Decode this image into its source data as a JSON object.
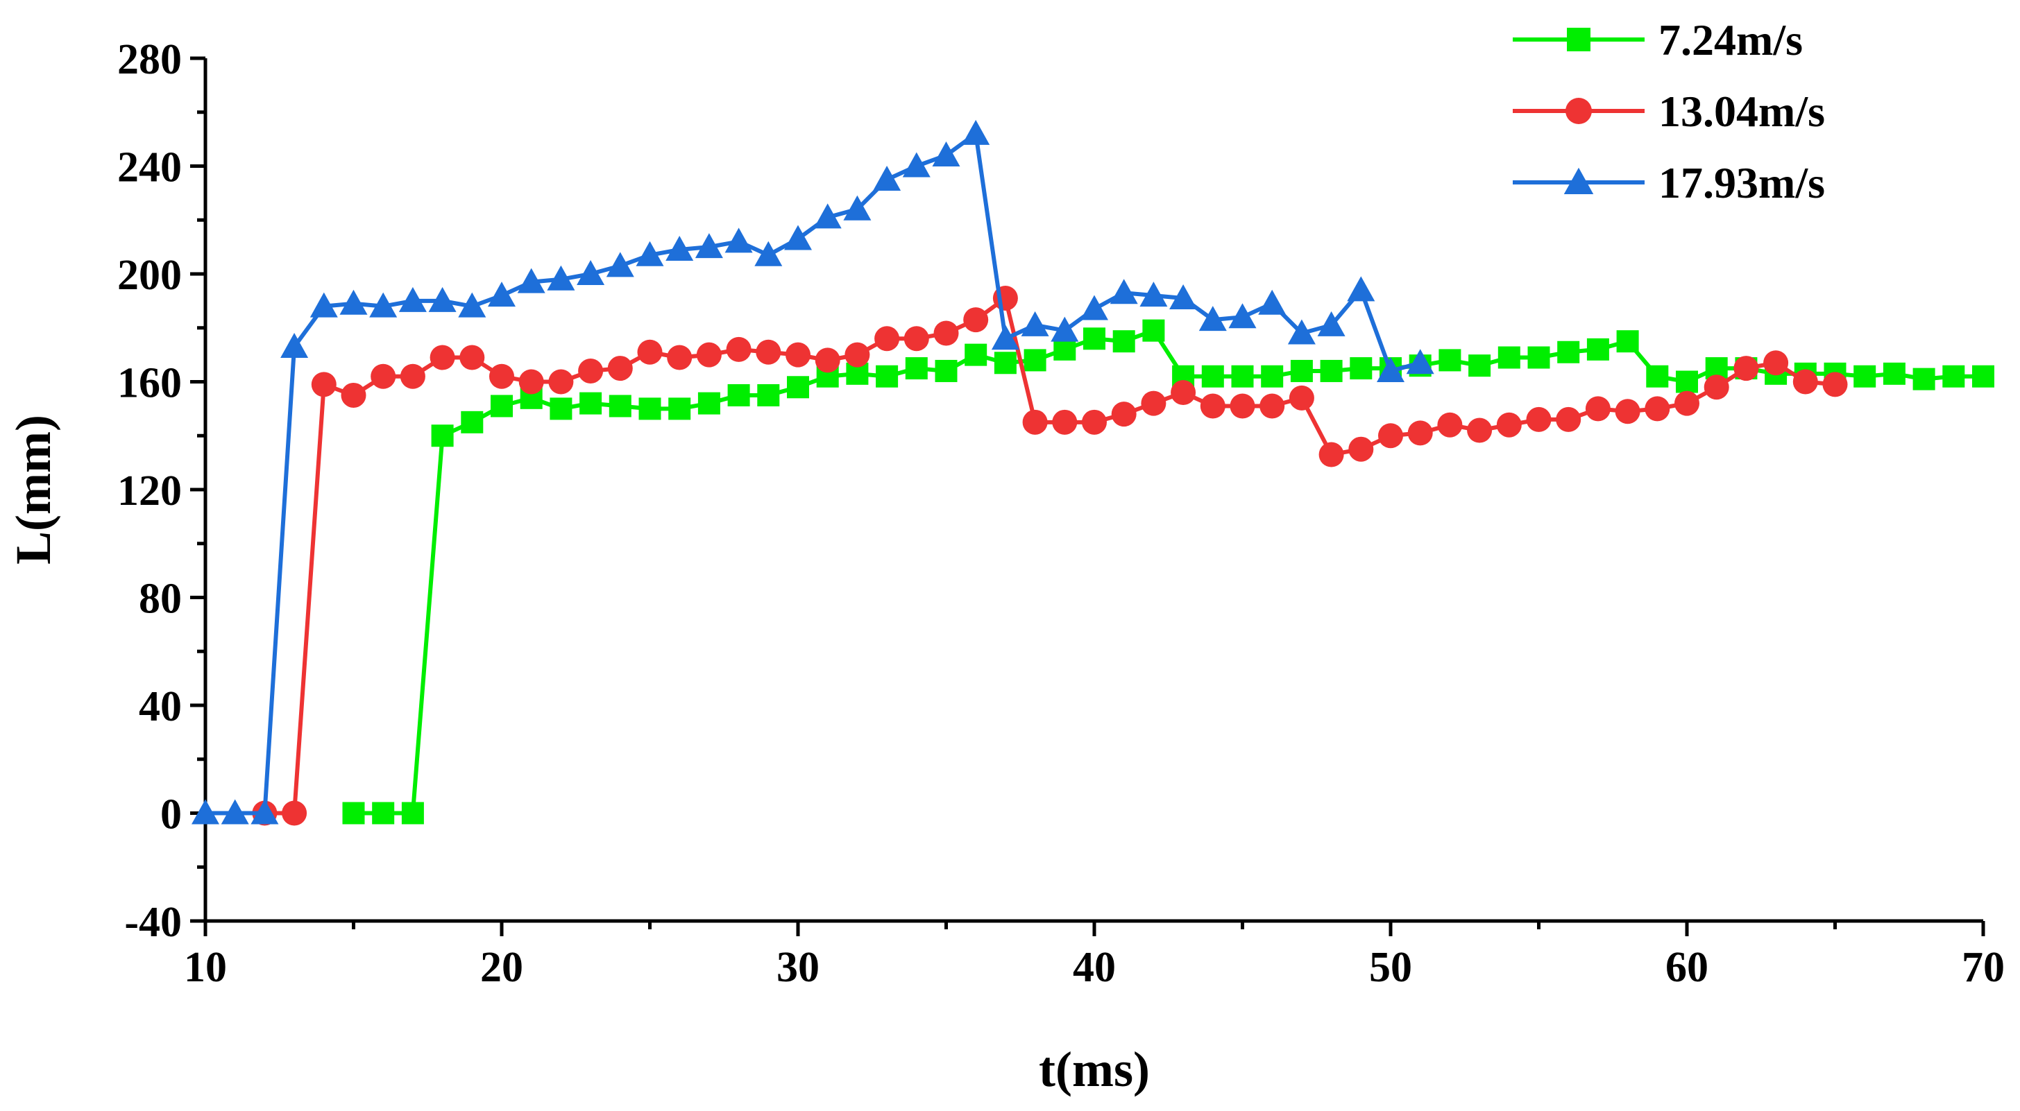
{
  "chart_data": {
    "type": "line",
    "xlabel": "t(ms)",
    "ylabel": "L(mm)",
    "xlim": [
      10,
      70
    ],
    "ylim": [
      -40,
      280
    ],
    "x_ticks": [
      10,
      20,
      30,
      40,
      50,
      60,
      70
    ],
    "y_ticks": [
      -40,
      0,
      40,
      80,
      120,
      160,
      200,
      240,
      280
    ],
    "x_tick_labels": [
      "10",
      "20",
      "30",
      "40",
      "50",
      "60",
      "70"
    ],
    "y_tick_labels": [
      "-40",
      "0",
      "40",
      "80",
      "120",
      "160",
      "200",
      "240",
      "280"
    ],
    "grid": false,
    "legend_position": "top-right",
    "series": [
      {
        "name": "7.24m/s",
        "color": "#00ee00",
        "marker": "square",
        "x": [
          15,
          16,
          17,
          18,
          19,
          20,
          21,
          22,
          23,
          24,
          25,
          26,
          27,
          28,
          29,
          30,
          31,
          32,
          33,
          34,
          35,
          36,
          37,
          38,
          39,
          40,
          41,
          42,
          43,
          44,
          45,
          46,
          47,
          48,
          49,
          50,
          51,
          52,
          53,
          54,
          55,
          56,
          57,
          58,
          59,
          60,
          61,
          62,
          63,
          64,
          65,
          66,
          67,
          68,
          69,
          70
        ],
        "y": [
          0,
          0,
          0,
          140,
          145,
          151,
          154,
          150,
          152,
          151,
          150,
          150,
          152,
          155,
          155,
          158,
          162,
          163,
          162,
          165,
          164,
          170,
          167,
          168,
          172,
          176,
          175,
          179,
          162,
          162,
          162,
          162,
          164,
          164,
          165,
          165,
          166,
          168,
          166,
          169,
          169,
          171,
          172,
          175,
          162,
          160,
          165,
          165,
          163,
          163,
          163,
          162,
          163,
          161,
          162,
          162
        ]
      },
      {
        "name": "13.04m/s",
        "color": "#ee3333",
        "marker": "circle",
        "x": [
          12,
          13,
          14,
          15,
          16,
          17,
          18,
          19,
          20,
          21,
          22,
          23,
          24,
          25,
          26,
          27,
          28,
          29,
          30,
          31,
          32,
          33,
          34,
          35,
          36,
          37,
          38,
          39,
          40,
          41,
          42,
          43,
          44,
          45,
          46,
          47,
          48,
          49,
          50,
          51,
          52,
          53,
          54,
          55,
          56,
          57,
          58,
          59,
          60,
          61,
          62,
          63,
          64,
          65
        ],
        "y": [
          0,
          0,
          159,
          155,
          162,
          162,
          169,
          169,
          162,
          160,
          160,
          164,
          165,
          171,
          169,
          170,
          172,
          171,
          170,
          168,
          170,
          176,
          176,
          178,
          183,
          191,
          145,
          145,
          145,
          148,
          152,
          156,
          151,
          151,
          151,
          154,
          133,
          135,
          140,
          141,
          144,
          142,
          144,
          146,
          146,
          150,
          149,
          150,
          152,
          158,
          165,
          167,
          160,
          159
        ]
      },
      {
        "name": "17.93m/s",
        "color": "#1e6fd9",
        "marker": "triangle",
        "x": [
          10,
          11,
          12,
          13,
          14,
          15,
          16,
          17,
          18,
          19,
          20,
          21,
          22,
          23,
          24,
          25,
          26,
          27,
          28,
          29,
          30,
          31,
          32,
          33,
          34,
          35,
          36,
          37,
          38,
          39,
          40,
          41,
          42,
          43,
          44,
          45,
          46,
          47,
          48,
          49,
          50,
          51
        ],
        "y": [
          0,
          0,
          0,
          173,
          188,
          189,
          188,
          190,
          190,
          188,
          192,
          197,
          198,
          200,
          203,
          207,
          209,
          210,
          212,
          207,
          213,
          221,
          224,
          235,
          240,
          244,
          252,
          176,
          181,
          179,
          187,
          193,
          192,
          191,
          183,
          184,
          189,
          178,
          181,
          194,
          164,
          167
        ]
      }
    ]
  }
}
